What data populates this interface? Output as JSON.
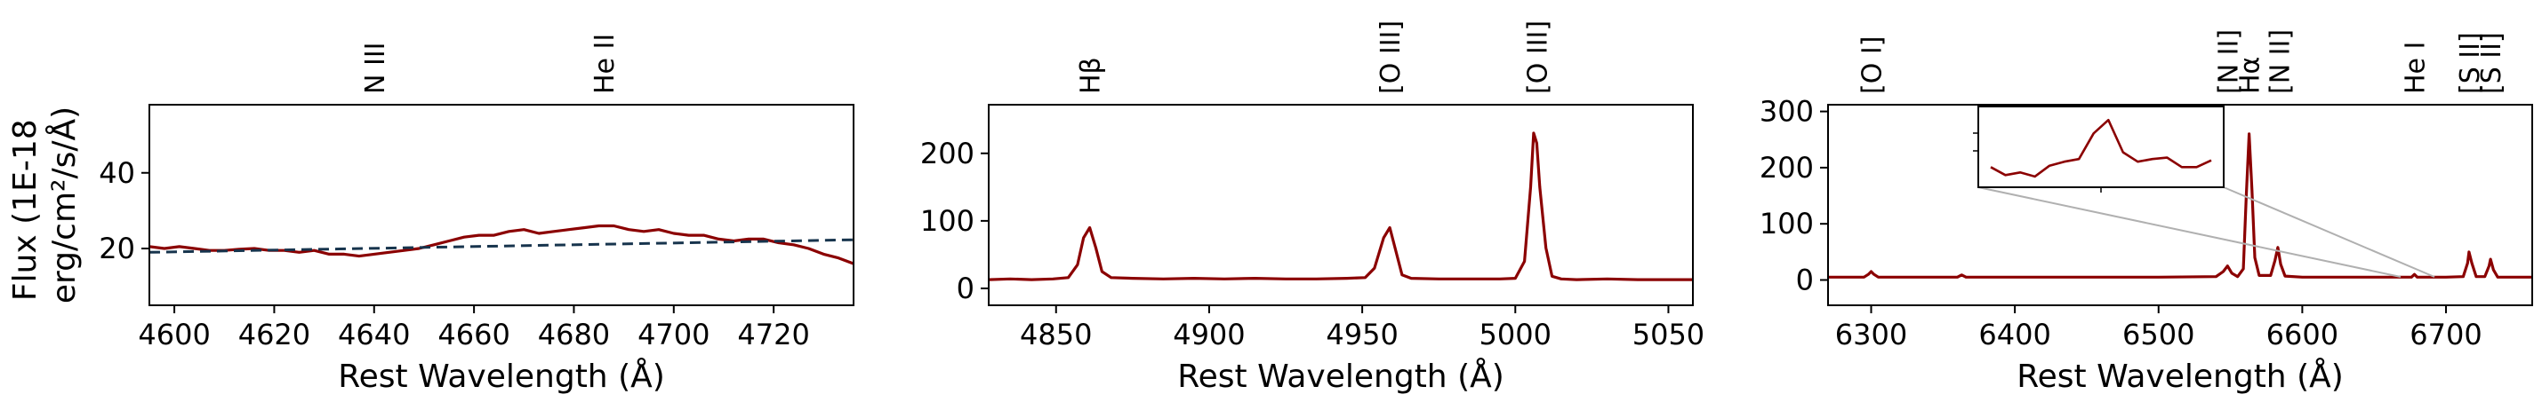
{
  "figure": {
    "ylabel_line1": "Flux (1E-18",
    "ylabel_line2": "erg/cm²/s/Å)",
    "colors": {
      "spectrum": "#8b0000",
      "continuum": "#17344d",
      "inset_connector": "#b0b0b0"
    }
  },
  "chart_data": [
    {
      "type": "line",
      "xlabel": "Rest Wavelength (Å)",
      "ylabel": "Flux (1E-18 erg/cm²/s/Å)",
      "xlim": [
        4595,
        4736
      ],
      "ylim": [
        5,
        58
      ],
      "xticks": [
        4600,
        4620,
        4640,
        4660,
        4680,
        4700,
        4720
      ],
      "yticks": [
        20,
        40
      ],
      "line_labels": [
        {
          "label": "N III",
          "x": 4640
        },
        {
          "label": "He II",
          "x": 4686
        }
      ],
      "series": [
        {
          "style": "solid",
          "color": "#8b0000",
          "x": [
            4595,
            4598,
            4601,
            4604,
            4607,
            4610,
            4613,
            4616,
            4619,
            4622,
            4625,
            4628,
            4631,
            4634,
            4637,
            4640,
            4643,
            4646,
            4649,
            4652,
            4655,
            4658,
            4661,
            4664,
            4667,
            4670,
            4673,
            4676,
            4679,
            4682,
            4685,
            4688,
            4691,
            4694,
            4697,
            4700,
            4703,
            4706,
            4709,
            4712,
            4715,
            4718,
            4721,
            4724,
            4727,
            4730,
            4733,
            4736
          ],
          "y": [
            20.5,
            20.0,
            20.5,
            20.0,
            19.5,
            19.5,
            19.8,
            20.0,
            19.5,
            19.5,
            19.0,
            19.5,
            18.5,
            18.5,
            18.0,
            18.5,
            19.0,
            19.5,
            20.0,
            21.0,
            22.0,
            23.0,
            23.5,
            23.5,
            24.5,
            25.0,
            24.0,
            24.5,
            25.0,
            25.5,
            26.0,
            26.0,
            25.0,
            24.5,
            25.0,
            24.0,
            23.5,
            23.5,
            22.5,
            22.0,
            22.5,
            22.5,
            21.5,
            21.0,
            20.0,
            18.5,
            17.5,
            16.0
          ]
        },
        {
          "style": "dashed",
          "color": "#17344d",
          "x": [
            4595,
            4736
          ],
          "y": [
            19.0,
            22.3
          ]
        }
      ]
    },
    {
      "type": "line",
      "xlabel": "Rest Wavelength (Å)",
      "xlim": [
        4828,
        5058
      ],
      "ylim": [
        -25,
        272
      ],
      "xticks": [
        4850,
        4900,
        4950,
        5000,
        5050
      ],
      "yticks": [
        0,
        100,
        200
      ],
      "line_labels": [
        {
          "label": "Hβ",
          "x": 4861
        },
        {
          "label": "[O III]",
          "x": 4959
        },
        {
          "label": "[O III]",
          "x": 5007
        }
      ],
      "series": [
        {
          "style": "solid",
          "color": "#8b0000",
          "x": [
            4828,
            4835,
            4842,
            4849,
            4854,
            4857,
            4859,
            4861,
            4863,
            4865,
            4868,
            4875,
            4885,
            4895,
            4905,
            4915,
            4925,
            4935,
            4945,
            4951,
            4954,
            4957,
            4959,
            4961,
            4963,
            4966,
            4975,
            4985,
            4995,
            5000,
            5003,
            5005,
            5006,
            5007,
            5008,
            5010,
            5012,
            5015,
            5020,
            5030,
            5040,
            5050,
            5058
          ],
          "y": [
            13,
            14,
            13,
            14,
            16,
            35,
            75,
            90,
            60,
            25,
            16,
            15,
            14,
            15,
            14,
            15,
            14,
            14,
            15,
            16,
            30,
            75,
            90,
            55,
            20,
            15,
            14,
            14,
            14,
            15,
            40,
            150,
            230,
            215,
            150,
            60,
            18,
            14,
            13,
            14,
            13,
            13,
            13
          ]
        }
      ]
    },
    {
      "type": "line",
      "xlabel": "Rest Wavelength (Å)",
      "xlim": [
        6270,
        6760
      ],
      "ylim": [
        -45,
        312
      ],
      "xticks": [
        6300,
        6400,
        6500,
        6600,
        6700
      ],
      "yticks": [
        0,
        100,
        200,
        300
      ],
      "line_labels": [
        {
          "label": "[O I]",
          "x": 6300
        },
        {
          "label": "[N II]",
          "x": 6548
        },
        {
          "label": "Hα",
          "x": 6563
        },
        {
          "label": "[N II]",
          "x": 6584
        },
        {
          "label": "He I",
          "x": 6678
        },
        {
          "label": "[S II]",
          "x": 6716
        },
        {
          "label": "[S II]",
          "x": 6731
        }
      ],
      "series": [
        {
          "style": "solid",
          "color": "#8b0000",
          "x": [
            6270,
            6295,
            6298,
            6300,
            6302,
            6305,
            6330,
            6360,
            6363,
            6366,
            6400,
            6450,
            6500,
            6540,
            6545,
            6548,
            6551,
            6555,
            6559,
            6561,
            6563,
            6565,
            6567,
            6570,
            6578,
            6581,
            6583,
            6585,
            6588,
            6600,
            6650,
            6676,
            6678,
            6680,
            6700,
            6712,
            6715,
            6716,
            6718,
            6721,
            6727,
            6730,
            6731,
            6733,
            6736,
            6760
          ],
          "y": [
            5,
            5,
            10,
            15,
            10,
            5,
            5,
            5,
            9,
            5,
            5,
            5,
            5,
            6,
            15,
            25,
            12,
            6,
            20,
            150,
            260,
            160,
            40,
            8,
            8,
            35,
            58,
            28,
            7,
            5,
            5,
            5,
            10,
            5,
            5,
            6,
            30,
            50,
            30,
            6,
            6,
            25,
            37,
            18,
            5,
            5
          ]
        }
      ],
      "inset": {
        "series": {
          "x": [
            0,
            1,
            2,
            3,
            4,
            5,
            6,
            7,
            8,
            9,
            10,
            11,
            12,
            13,
            14,
            15
          ],
          "y": [
            5.0,
            4.4,
            4.6,
            4.3,
            5.1,
            5.4,
            5.6,
            7.5,
            8.5,
            6.1,
            5.4,
            5.6,
            5.7,
            5.0,
            5.0,
            5.5
          ]
        },
        "ylim": [
          3.5,
          9.5
        ]
      }
    }
  ]
}
